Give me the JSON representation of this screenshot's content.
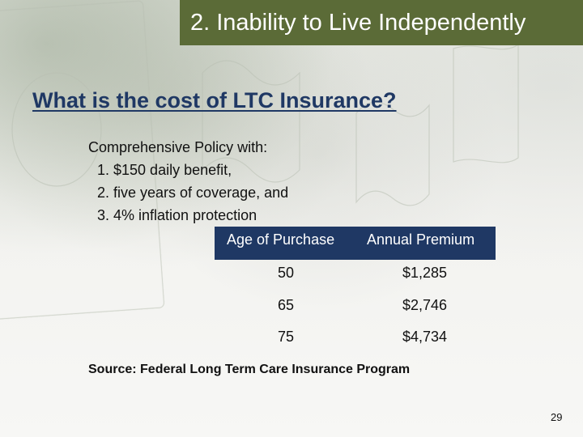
{
  "slide": {
    "title": "2. Inability to Live Independently",
    "heading": "What is the cost of LTC Insurance?",
    "intro": "Comprehensive Policy with:",
    "policy_items": [
      "1. $150 daily benefit,",
      "2. five years of coverage, and",
      "3. 4% inflation protection"
    ],
    "table": {
      "headers": [
        "Age of Purchase",
        "Annual Premium"
      ],
      "rows": [
        {
          "age": "50",
          "premium": "$1,285"
        },
        {
          "age": "65",
          "premium": "$2,746"
        },
        {
          "age": "75",
          "premium": "$4,734"
        }
      ]
    },
    "source": "Source: Federal Long Term Care Insurance Program",
    "page_number": "29"
  },
  "colors": {
    "title_bar": "#5b6b37",
    "heading": "#1f3864",
    "table_header": "#1f3864"
  }
}
